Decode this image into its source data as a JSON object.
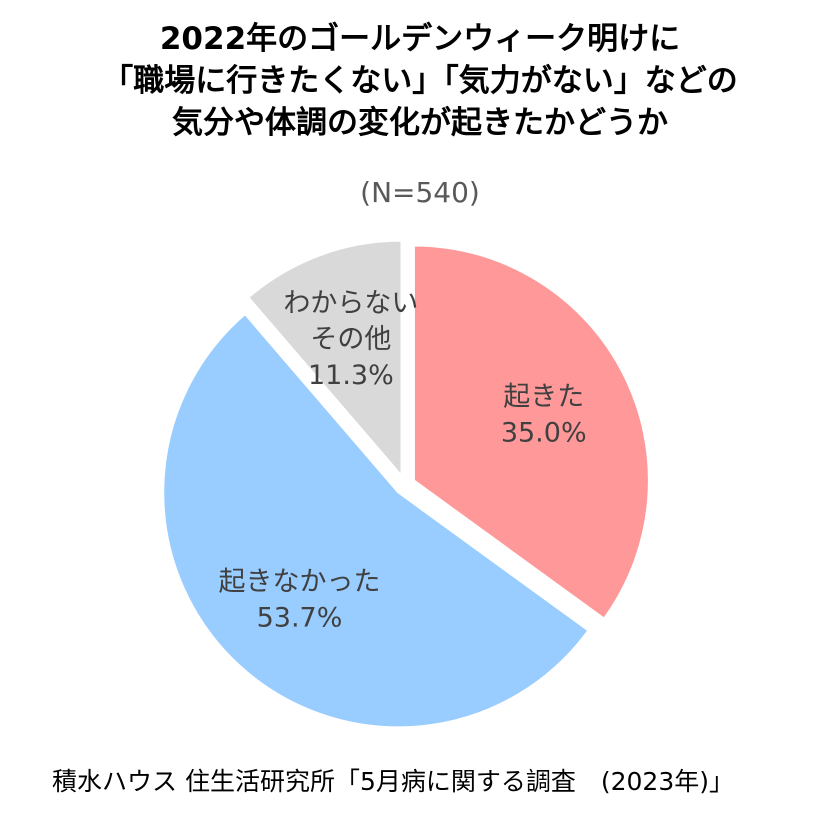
{
  "chart_data": {
    "type": "pie",
    "title_lines": [
      "2022年のゴールデンウィーク明けに",
      "「職場に行きたくない」「気力がない」などの",
      "気分や体調の変化が起きたかどうか"
    ],
    "sample_note": "(N=540)",
    "slices": [
      {
        "label": "起きた",
        "value": 35.0,
        "value_label": "35.0%",
        "color": "#ff9999"
      },
      {
        "label": "起きなかった",
        "value": 53.7,
        "value_label": "53.7%",
        "color": "#99ccff"
      },
      {
        "label": "わからない\nその他",
        "value": 11.3,
        "value_label": "11.3%",
        "color": "#d9d9d9"
      }
    ],
    "start_angle_deg": 0,
    "direction": "clockwise"
  },
  "source": "積水ハウス 住生活研究所「5月病に関する調査　(2023年)」"
}
